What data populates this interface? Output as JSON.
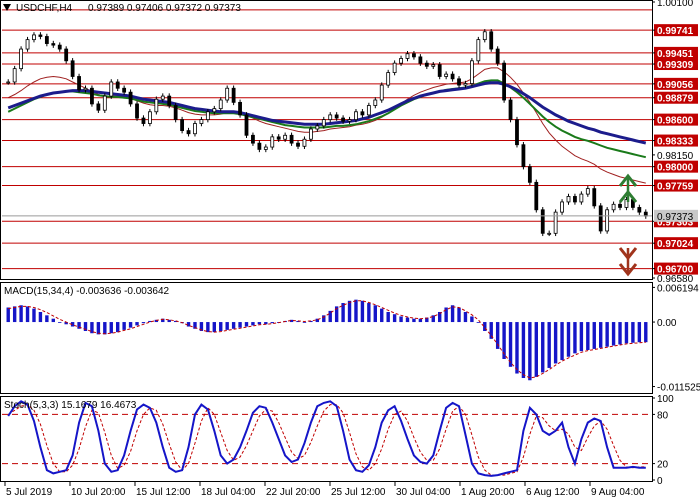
{
  "header": {
    "symbol": "USDCHF,H4",
    "ohlc": "0.97389 0.97406 0.97372 0.97373"
  },
  "colors": {
    "level_line": "#c00000",
    "level_label_bg": "#c00000",
    "candle": "#000000",
    "ma_blue": "#1c1c8c",
    "ma_green": "#1a7a1a",
    "ma_red": "#a02020",
    "macd_bar": "#1515c8",
    "macd_signal": "#c00000",
    "stoch_main": "#1515c8",
    "stoch_signal": "#c00000",
    "arrow_up": "#2e7d32",
    "arrow_down": "#a0341c",
    "current_price_bg": "#c8c8c8",
    "grid_border": "#000000"
  },
  "price_axis": {
    "labels": [
      "1.00100",
      "0.99741",
      "0.99451",
      "0.99309",
      "0.99056",
      "0.98879",
      "0.98600",
      "0.98333",
      "0.98150",
      "0.98000",
      "0.97759",
      "0.97303",
      "0.97024",
      "0.96700",
      "0.96580"
    ],
    "level_lines": [
      "1.00000",
      "0.99741",
      "0.99451",
      "0.99309",
      "0.99056",
      "0.98879",
      "0.98600",
      "0.98333",
      "0.98000",
      "0.97759",
      "0.97303",
      "0.97024",
      "0.96700"
    ],
    "current_price": "0.97373"
  },
  "time_axis": {
    "labels": [
      "5 Jul 2019",
      "10 Jul 20:00",
      "15 Jul 12:00",
      "18 Jul 04:00",
      "22 Jul 20:00",
      "25 Jul 12:00",
      "30 Jul 04:00",
      "1 Aug 20:00",
      "6 Aug 12:00",
      "9 Aug 04:00"
    ]
  },
  "macd_panel": {
    "title": "MACD(15,34,4) -0.003636 -0.003642",
    "axis_labels": [
      "0.006194",
      "0.00",
      "-0.011525"
    ]
  },
  "stoch_panel": {
    "title": "Stoch(5,3,3) 15.1679 16.4673",
    "axis_labels": [
      "100",
      "80",
      "20",
      "0"
    ]
  },
  "signals": {
    "up_arrow_icon": "double-chevron-up",
    "down_arrow_icon": "double-chevron-down"
  },
  "chart_data": [
    {
      "type": "candlestick",
      "ylim": [
        0.9658,
        1.001
      ],
      "horizontal_levels": [
        1.0,
        0.99741,
        0.99451,
        0.99309,
        0.99056,
        0.98879,
        0.986,
        0.98333,
        0.98,
        0.97759,
        0.97303,
        0.97024,
        0.967
      ],
      "close": [
        0.9908,
        0.9925,
        0.995,
        0.9962,
        0.9968,
        0.9966,
        0.9957,
        0.9955,
        0.995,
        0.9935,
        0.9915,
        0.9898,
        0.99,
        0.988,
        0.9872,
        0.989,
        0.9908,
        0.99,
        0.9895,
        0.988,
        0.9862,
        0.9855,
        0.987,
        0.9886,
        0.989,
        0.9878,
        0.986,
        0.9846,
        0.9842,
        0.9855,
        0.986,
        0.987,
        0.9874,
        0.9885,
        0.99,
        0.9882,
        0.9866,
        0.984,
        0.983,
        0.9822,
        0.9825,
        0.9838,
        0.9835,
        0.984,
        0.983,
        0.9826,
        0.9835,
        0.9848,
        0.9852,
        0.986,
        0.9866,
        0.9862,
        0.9858,
        0.986,
        0.987,
        0.9866,
        0.9878,
        0.9885,
        0.9904,
        0.992,
        0.9932,
        0.9938,
        0.9944,
        0.994,
        0.9932,
        0.9928,
        0.993,
        0.9915,
        0.9918,
        0.9912,
        0.9904,
        0.9906,
        0.9935,
        0.9962,
        0.9972,
        0.995,
        0.9932,
        0.9885,
        0.986,
        0.9828,
        0.98,
        0.978,
        0.9745,
        0.9715,
        0.9715,
        0.9742,
        0.9755,
        0.9762,
        0.9755,
        0.9765,
        0.9772,
        0.975,
        0.9718,
        0.9745,
        0.9752,
        0.9748,
        0.9758,
        0.9748,
        0.9742,
        0.9737
      ],
      "ma_fast": [
        0.9888,
        0.9892,
        0.9897,
        0.9903,
        0.9908,
        0.9912,
        0.9914,
        0.9915,
        0.9914,
        0.9912,
        0.9908,
        0.9904,
        0.99,
        0.9896,
        0.9892,
        0.989,
        0.989,
        0.989,
        0.9889,
        0.9887,
        0.9884,
        0.9881,
        0.9879,
        0.9878,
        0.9878,
        0.9877,
        0.9875,
        0.9872,
        0.9869,
        0.9867,
        0.9866,
        0.9866,
        0.9866,
        0.9867,
        0.9869,
        0.9869,
        0.9868,
        0.9865,
        0.9862,
        0.9858,
        0.9855,
        0.9853,
        0.9851,
        0.9849,
        0.9847,
        0.9845,
        0.9844,
        0.9844,
        0.9845,
        0.9846,
        0.9848,
        0.9849,
        0.985,
        0.9851,
        0.9853,
        0.9854,
        0.9856,
        0.9859,
        0.9863,
        0.9868,
        0.9874,
        0.988,
        0.9886,
        0.9891,
        0.9895,
        0.9898,
        0.9901,
        0.9903,
        0.9905,
        0.9906,
        0.9907,
        0.9908,
        0.9912,
        0.9918,
        0.9924,
        0.9926,
        0.9926,
        0.9921,
        0.9914,
        0.9905,
        0.9894,
        0.9882,
        0.9869,
        0.9855,
        0.9843,
        0.9834,
        0.9826,
        0.982,
        0.9814,
        0.981,
        0.9807,
        0.9803,
        0.9797,
        0.9793,
        0.979,
        0.9787,
        0.9785,
        0.9783,
        0.9781,
        0.9779
      ],
      "ma_mid": [
        0.987,
        0.9874,
        0.9878,
        0.9882,
        0.9886,
        0.9889,
        0.9892,
        0.9894,
        0.9895,
        0.9896,
        0.9896,
        0.9895,
        0.9894,
        0.9893,
        0.9891,
        0.989,
        0.9889,
        0.9889,
        0.9888,
        0.9887,
        0.9885,
        0.9883,
        0.9882,
        0.9881,
        0.988,
        0.9879,
        0.9877,
        0.9875,
        0.9873,
        0.9871,
        0.987,
        0.9869,
        0.9868,
        0.9868,
        0.9868,
        0.9868,
        0.9867,
        0.9865,
        0.9863,
        0.9861,
        0.9859,
        0.9857,
        0.9855,
        0.9853,
        0.9852,
        0.9851,
        0.985,
        0.985,
        0.985,
        0.985,
        0.9851,
        0.9852,
        0.9852,
        0.9853,
        0.9854,
        0.9856,
        0.9858,
        0.9861,
        0.9864,
        0.9868,
        0.9873,
        0.9878,
        0.9882,
        0.9886,
        0.9889,
        0.9892,
        0.9894,
        0.9896,
        0.9898,
        0.9899,
        0.99,
        0.9901,
        0.9903,
        0.9906,
        0.9909,
        0.991,
        0.991,
        0.9906,
        0.9901,
        0.9895,
        0.9888,
        0.988,
        0.9872,
        0.9864,
        0.9857,
        0.9851,
        0.9846,
        0.9842,
        0.9838,
        0.9835,
        0.9833,
        0.983,
        0.9827,
        0.9824,
        0.9822,
        0.982,
        0.9818,
        0.9816,
        0.9814,
        0.9812
      ],
      "ma_slow": [
        0.9875,
        0.9878,
        0.9881,
        0.9884,
        0.9887,
        0.989,
        0.9892,
        0.9894,
        0.9895,
        0.9896,
        0.9897,
        0.9897,
        0.9897,
        0.9896,
        0.9895,
        0.9894,
        0.9893,
        0.9892,
        0.9891,
        0.989,
        0.9888,
        0.9886,
        0.9885,
        0.9884,
        0.9883,
        0.9882,
        0.988,
        0.9878,
        0.9876,
        0.9874,
        0.9873,
        0.9872,
        0.9871,
        0.987,
        0.987,
        0.987,
        0.9869,
        0.9867,
        0.9865,
        0.9863,
        0.9861,
        0.9859,
        0.9858,
        0.9857,
        0.9856,
        0.9855,
        0.9854,
        0.9854,
        0.9854,
        0.9854,
        0.9855,
        0.9856,
        0.9857,
        0.9858,
        0.9859,
        0.9861,
        0.9863,
        0.9866,
        0.9869,
        0.9872,
        0.9876,
        0.988,
        0.9884,
        0.9887,
        0.989,
        0.9892,
        0.9894,
        0.9896,
        0.9897,
        0.9898,
        0.9899,
        0.99,
        0.9902,
        0.9904,
        0.9906,
        0.9907,
        0.9907,
        0.9905,
        0.9902,
        0.9898,
        0.9893,
        0.9888,
        0.9882,
        0.9876,
        0.9871,
        0.9866,
        0.9862,
        0.9858,
        0.9855,
        0.9852,
        0.9849,
        0.9847,
        0.9844,
        0.9842,
        0.984,
        0.9838,
        0.9836,
        0.9834,
        0.9832,
        0.983
      ]
    },
    {
      "type": "bar",
      "title": "MACD(15,34,4) -0.003636 -0.003642",
      "ylim": [
        -0.0125,
        0.0068
      ],
      "values": [
        0.0026,
        0.0028,
        0.003,
        0.0028,
        0.0024,
        0.0018,
        0.0012,
        0.0006,
        0.0,
        -0.0004,
        -0.0008,
        -0.0012,
        -0.0016,
        -0.002,
        -0.0022,
        -0.0022,
        -0.002,
        -0.0018,
        -0.0014,
        -0.001,
        -0.0006,
        -0.0002,
        0.0002,
        0.0004,
        0.0006,
        0.0004,
        0.0002,
        -0.0002,
        -0.0008,
        -0.0012,
        -0.0016,
        -0.0018,
        -0.0018,
        -0.0016,
        -0.0014,
        -0.0012,
        -0.001,
        -0.0008,
        -0.0006,
        -0.0004,
        -0.0004,
        -0.0002,
        0.0,
        0.0002,
        0.0004,
        0.0002,
        0.0,
        0.0002,
        0.0006,
        0.0012,
        0.002,
        0.0028,
        0.0034,
        0.0038,
        0.004,
        0.0038,
        0.0034,
        0.003,
        0.0024,
        0.0018,
        0.0014,
        0.001,
        0.0008,
        0.0006,
        0.0006,
        0.0008,
        0.0012,
        0.0018,
        0.0026,
        0.003,
        0.0026,
        0.0018,
        0.001,
        0.0,
        -0.0016,
        -0.003,
        -0.0048,
        -0.0066,
        -0.008,
        -0.0092,
        -0.01,
        -0.0104,
        -0.0098,
        -0.009,
        -0.0082,
        -0.0074,
        -0.0068,
        -0.0062,
        -0.0056,
        -0.0052,
        -0.005,
        -0.0048,
        -0.0046,
        -0.0044,
        -0.0042,
        -0.004,
        -0.0038,
        -0.0037,
        -0.0036,
        -0.0036
      ],
      "signal": [
        0.0024,
        0.0026,
        0.0028,
        0.0028,
        0.0026,
        0.0022,
        0.0017,
        0.0011,
        0.0005,
        0.0,
        -0.0005,
        -0.0009,
        -0.0013,
        -0.0017,
        -0.002,
        -0.0021,
        -0.002,
        -0.0018,
        -0.0015,
        -0.0012,
        -0.0008,
        -0.0004,
        0.0,
        0.0003,
        0.0005,
        0.0004,
        0.0002,
        -0.0001,
        -0.0006,
        -0.001,
        -0.0014,
        -0.0017,
        -0.0018,
        -0.0017,
        -0.0015,
        -0.0013,
        -0.0011,
        -0.0009,
        -0.0007,
        -0.0005,
        -0.0004,
        -0.0003,
        -0.0001,
        0.0001,
        0.0003,
        0.0002,
        0.0001,
        0.0002,
        0.0004,
        0.0009,
        0.0016,
        0.0024,
        0.003,
        0.0035,
        0.0038,
        0.0038,
        0.0035,
        0.0031,
        0.0026,
        0.0021,
        0.0016,
        0.0012,
        0.0009,
        0.0007,
        0.0006,
        0.0007,
        0.001,
        0.0015,
        0.0022,
        0.0027,
        0.0026,
        0.002,
        0.0013,
        0.0004,
        -0.001,
        -0.0024,
        -0.004,
        -0.0057,
        -0.0072,
        -0.0085,
        -0.0094,
        -0.01,
        -0.0098,
        -0.0092,
        -0.0085,
        -0.0077,
        -0.007,
        -0.0064,
        -0.0059,
        -0.0054,
        -0.0051,
        -0.0049,
        -0.0047,
        -0.0045,
        -0.0043,
        -0.0041,
        -0.0039,
        -0.0038,
        -0.0037,
        -0.0036
      ]
    },
    {
      "type": "line",
      "title": "Stoch(5,3,3) 15.1679 16.4673",
      "ylim": [
        0,
        100
      ],
      "levels": [
        80,
        20
      ],
      "series": [
        {
          "values": [
            78,
            90,
            96,
            92,
            72,
            40,
            12,
            8,
            10,
            12,
            30,
            70,
            94,
            90,
            60,
            20,
            10,
            12,
            30,
            60,
            86,
            92,
            88,
            70,
            40,
            15,
            10,
            12,
            40,
            80,
            92,
            86,
            60,
            30,
            20,
            25,
            40,
            60,
            82,
            90,
            88,
            70,
            50,
            30,
            22,
            25,
            45,
            70,
            90,
            94,
            96,
            90,
            60,
            25,
            12,
            10,
            18,
            40,
            70,
            85,
            90,
            72,
            50,
            30,
            22,
            20,
            30,
            60,
            88,
            94,
            90,
            55,
            20,
            8,
            6,
            5,
            6,
            8,
            10,
            12,
            60,
            88,
            80,
            60,
            55,
            60,
            70,
            40,
            20,
            50,
            70,
            75,
            72,
            40,
            15,
            15,
            15,
            16,
            15,
            15
          ]
        },
        {
          "values": [
            80,
            85,
            90,
            92,
            85,
            68,
            42,
            20,
            10,
            10,
            18,
            38,
            65,
            85,
            82,
            58,
            30,
            14,
            18,
            35,
            60,
            80,
            88,
            85,
            68,
            44,
            22,
            12,
            20,
            45,
            72,
            88,
            80,
            58,
            36,
            24,
            28,
            42,
            60,
            78,
            86,
            84,
            70,
            52,
            34,
            26,
            30,
            46,
            66,
            84,
            92,
            92,
            82,
            58,
            32,
            16,
            12,
            20,
            38,
            62,
            80,
            84,
            72,
            52,
            34,
            24,
            24,
            38,
            62,
            84,
            90,
            80,
            55,
            28,
            12,
            6,
            6,
            6,
            8,
            10,
            28,
            56,
            78,
            76,
            66,
            60,
            62,
            56,
            40,
            36,
            52,
            66,
            72,
            62,
            42,
            24,
            16,
            15,
            16,
            16
          ]
        }
      ]
    }
  ]
}
